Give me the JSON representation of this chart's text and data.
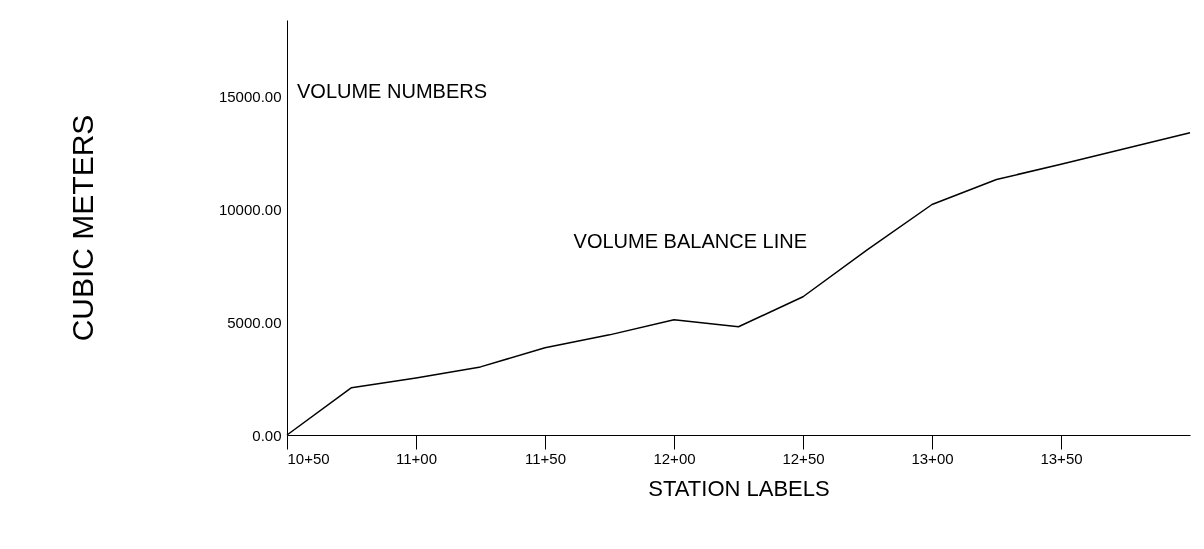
{
  "chart_data": {
    "type": "line",
    "ylabel": "CUBIC METERS",
    "xlabel": "STATION LABELS",
    "categories": [
      "10+50",
      null,
      "11+00",
      null,
      "11+50",
      null,
      "12+00",
      null,
      "12+50",
      null,
      "13+00",
      null,
      "13+50",
      null,
      null
    ],
    "series": [
      {
        "color": "#000000",
        "values": [
          0,
          2100,
          2530,
          3020,
          3870,
          4440,
          5110,
          4800,
          6130,
          8220,
          10220,
          11330,
          12000,
          12700,
          13400
        ]
      }
    ],
    "ylim": [
      0,
      18400
    ],
    "yticks": [
      {
        "value": 0,
        "label": "0.00"
      },
      {
        "value": 5000,
        "label": "5000.00"
      },
      {
        "value": 10000,
        "label": "10000.00"
      },
      {
        "value": 15000,
        "label": "15000.00"
      }
    ],
    "annotations": [
      "VOLUME NUMBERS",
      "VOLUME BALANCE LINE"
    ],
    "grid": false,
    "marker": "none",
    "line_style": "solid"
  }
}
